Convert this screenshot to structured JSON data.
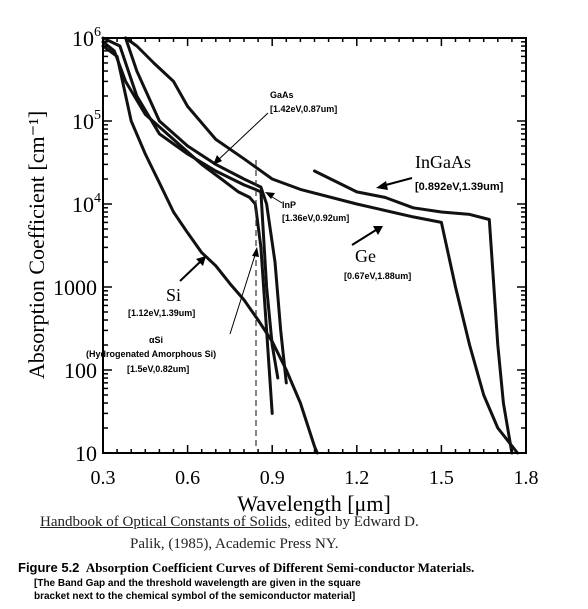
{
  "chart_data": {
    "type": "line",
    "title": "",
    "xlabel": "Wavelength [μm]",
    "ylabel": "Absorption Coefficient [cm⁻¹]",
    "xlim": [
      0.3,
      1.8
    ],
    "ylim": [
      10,
      1000000
    ],
    "yscale": "log",
    "x_ticks": [
      0.3,
      0.6,
      0.9,
      1.2,
      1.5,
      1.8
    ],
    "x_tick_labels": [
      "0.3",
      "0.6",
      "0.9",
      "1.2",
      "1.5",
      "1.8"
    ],
    "y_ticks": [
      10,
      100,
      1000,
      10000,
      100000,
      1000000
    ],
    "y_tick_labels": [
      {
        "base": "10",
        "exp": ""
      },
      {
        "base": "100",
        "exp": ""
      },
      {
        "base": "1000",
        "exp": ""
      },
      {
        "base": "10",
        "exp": "4"
      },
      {
        "base": "10",
        "exp": "5"
      },
      {
        "base": "10",
        "exp": "6"
      }
    ],
    "grid": false,
    "series": [
      {
        "name": "Si",
        "points": [
          [
            0.3,
            800000
          ],
          [
            0.35,
            600000
          ],
          [
            0.4,
            100000
          ],
          [
            0.45,
            40000
          ],
          [
            0.5,
            18000
          ],
          [
            0.55,
            8000
          ],
          [
            0.6,
            4500
          ],
          [
            0.65,
            2600
          ],
          [
            0.7,
            1800
          ],
          [
            0.75,
            1100
          ],
          [
            0.8,
            700
          ],
          [
            0.85,
            400
          ],
          [
            0.9,
            220
          ],
          [
            0.95,
            100
          ],
          [
            1.0,
            40
          ],
          [
            1.05,
            12
          ],
          [
            1.06,
            10
          ]
        ]
      },
      {
        "name": "αSi",
        "points": [
          [
            0.3,
            900000
          ],
          [
            0.34,
            700000
          ],
          [
            0.38,
            300000
          ],
          [
            0.45,
            120000
          ],
          [
            0.55,
            60000
          ],
          [
            0.65,
            30000
          ],
          [
            0.72,
            20000
          ],
          [
            0.78,
            14000
          ],
          [
            0.82,
            12000
          ],
          [
            0.84,
            10000
          ],
          [
            0.86,
            3000
          ],
          [
            0.88,
            300
          ],
          [
            0.9,
            30
          ]
        ]
      },
      {
        "name": "GaAs",
        "points": [
          [
            0.3,
            1000000
          ],
          [
            0.36,
            800000
          ],
          [
            0.42,
            200000
          ],
          [
            0.5,
            70000
          ],
          [
            0.6,
            40000
          ],
          [
            0.7,
            25000
          ],
          [
            0.8,
            17000
          ],
          [
            0.84,
            15000
          ],
          [
            0.86,
            14000
          ],
          [
            0.88,
            1000
          ],
          [
            0.9,
            200
          ],
          [
            0.92,
            80
          ]
        ]
      },
      {
        "name": "InP",
        "points": [
          [
            0.38,
            1000000
          ],
          [
            0.42,
            400000
          ],
          [
            0.5,
            100000
          ],
          [
            0.6,
            50000
          ],
          [
            0.7,
            30000
          ],
          [
            0.8,
            20000
          ],
          [
            0.86,
            16000
          ],
          [
            0.88,
            10000
          ],
          [
            0.91,
            2000
          ],
          [
            0.93,
            300
          ],
          [
            0.95,
            70
          ]
        ]
      },
      {
        "name": "InGaAs",
        "points": [
          [
            1.05,
            25000
          ],
          [
            1.2,
            14000
          ],
          [
            1.3,
            12000
          ],
          [
            1.4,
            9000
          ],
          [
            1.5,
            8000
          ],
          [
            1.6,
            7500
          ],
          [
            1.67,
            6500
          ],
          [
            1.68,
            2000
          ],
          [
            1.7,
            200
          ],
          [
            1.72,
            40
          ],
          [
            1.75,
            10
          ]
        ]
      },
      {
        "name": "Ge",
        "points": [
          [
            0.38,
            1000000
          ],
          [
            0.42,
            800000
          ],
          [
            0.48,
            500000
          ],
          [
            0.55,
            300000
          ],
          [
            0.6,
            150000
          ],
          [
            0.7,
            60000
          ],
          [
            0.8,
            35000
          ],
          [
            0.9,
            20000
          ],
          [
            1.0,
            15000
          ],
          [
            1.2,
            10000
          ],
          [
            1.4,
            7000
          ],
          [
            1.5,
            6000
          ],
          [
            1.55,
            1000
          ],
          [
            1.6,
            200
          ],
          [
            1.65,
            50
          ],
          [
            1.7,
            20
          ],
          [
            1.77,
            10
          ]
        ]
      }
    ],
    "annotations": [
      {
        "id": "gaas",
        "name": "GaAs",
        "value": "[1.42eV,0.87um]"
      },
      {
        "id": "inp",
        "name": "InP",
        "value": "[1.36eV,0.92um]"
      },
      {
        "id": "ingaas",
        "name": "InGaAs",
        "value": "[0.892eV,1.39um]"
      },
      {
        "id": "ge",
        "name": "Ge",
        "value": "[0.67eV,1.88um]"
      },
      {
        "id": "si",
        "name": "Si",
        "value": "[1.12eV,1.39um]"
      },
      {
        "id": "asi",
        "name": "αSi",
        "subtitle": "(Hydrogenated Amorphous Si)",
        "value": "[1.5eV,0.82um]"
      }
    ]
  },
  "citation": {
    "title": "Handbook of Optical Constants of Solids",
    "line1_rest": ", edited by Edward D.",
    "line2": "Palik, (1985), Academic Press NY."
  },
  "caption": {
    "figure_number": "Figure 5.2",
    "text": "Absorption Coefficient Curves of Different Semi-conductor Materials.",
    "note_line1": "[The Band Gap and the threshold wavelength are given in the square",
    "note_line2": "bracket next to the chemical symbol of  the semiconductor material]"
  },
  "style": {
    "curve_color": "#111111",
    "axis_color": "#000000",
    "dash_color": "#333333"
  }
}
